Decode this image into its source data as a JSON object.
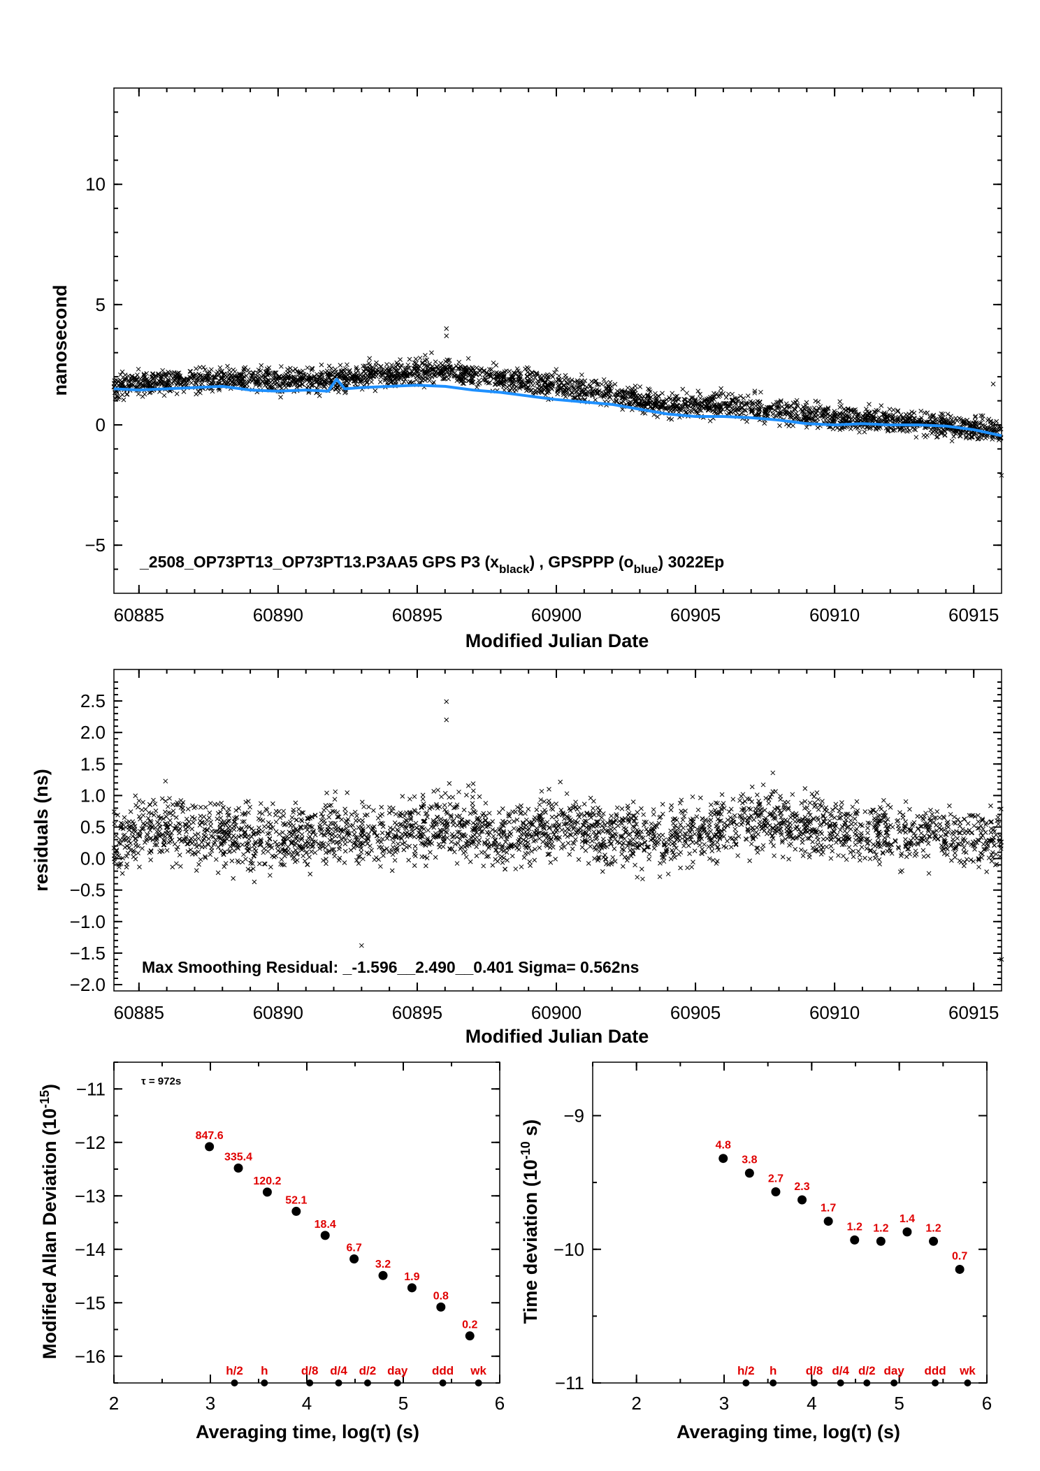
{
  "chart_data": [
    {
      "type": "scatter",
      "panel": "top",
      "title": "_2508_OP73PT13_OP73PT13.P3AA5    GPS P3 (x_black) ,  GPSPPP (o_blue)  3022Ep",
      "title_parts": {
        "main": "_2508_OP73PT13_OP73PT13.P3AA5    GPS P3 (x",
        "sub1": "black",
        "mid": ") ,  GPSPPP (o",
        "sub2": "blue",
        "end": ")  3022Ep"
      },
      "xlabel": "Modified Julian Date",
      "ylabel": "nanosecond",
      "xlim": [
        60884.1,
        60916
      ],
      "ylim": [
        -7,
        14
      ],
      "xticks": [
        "60885",
        "60890",
        "60895",
        "60900",
        "60905",
        "60910",
        "60915"
      ],
      "yticks": [
        "−5",
        "0",
        "5",
        "10"
      ],
      "series": [
        {
          "marker": "x",
          "color": "#000000",
          "trend": [
            [
              60884.1,
              1.6
            ],
            [
              60886,
              1.8
            ],
            [
              60888,
              1.9
            ],
            [
              60890,
              1.8
            ],
            [
              60892,
              1.9
            ],
            [
              60894,
              2.1
            ],
            [
              60896,
              2.3
            ],
            [
              60898,
              1.9
            ],
            [
              60900,
              1.6
            ],
            [
              60902,
              1.3
            ],
            [
              60904,
              0.8
            ],
            [
              60906,
              0.8
            ],
            [
              60908,
              0.6
            ],
            [
              60910,
              0.3
            ],
            [
              60912,
              0.2
            ],
            [
              60914,
              0.0
            ],
            [
              60916,
              -0.3
            ]
          ]
        },
        {
          "marker": "o",
          "color": "#1e90ff",
          "x": [
            60884.1,
            60885,
            60886,
            60887,
            60888,
            60889,
            60890,
            60891,
            60891.8,
            60892.1,
            60892.4,
            60893,
            60894,
            60895,
            60896,
            60897,
            60898,
            60899,
            60900,
            60901,
            60902,
            60903,
            60904,
            60905,
            60906,
            60907,
            60908,
            60909,
            60910,
            60911,
            60912,
            60913,
            60914,
            60915,
            60916
          ],
          "y": [
            1.5,
            1.45,
            1.5,
            1.55,
            1.6,
            1.45,
            1.4,
            1.45,
            1.4,
            1.9,
            1.5,
            1.55,
            1.6,
            1.65,
            1.6,
            1.45,
            1.35,
            1.2,
            1.05,
            0.95,
            0.85,
            0.65,
            0.45,
            0.35,
            0.35,
            0.3,
            0.2,
            0.05,
            0.0,
            0.05,
            0.0,
            0.0,
            -0.05,
            -0.2,
            -0.45
          ]
        }
      ]
    },
    {
      "type": "scatter",
      "panel": "middle",
      "xlabel": "Modified Julian Date",
      "ylabel": "residuals (ns)",
      "annotation": "Max Smoothing Residual: _-1.596__2.490__0.401  Sigma= 0.562ns",
      "xlim": [
        60884.1,
        60916
      ],
      "ylim": [
        -2.1,
        3.0
      ],
      "xticks": [
        "60885",
        "60890",
        "60895",
        "60900",
        "60905",
        "60910",
        "60915"
      ],
      "yticks": [
        "−2.0",
        "−1.5",
        "−1.0",
        "−0.5",
        "0.0",
        "0.5",
        "1.0",
        "1.5",
        "2.0",
        "2.5"
      ],
      "series": [
        {
          "marker": "x",
          "color": "#000000",
          "sigma": 0.562,
          "min": -1.596,
          "max": 2.49,
          "mean": 0.401,
          "trend": [
            [
              60884.1,
              0.3
            ],
            [
              60886,
              0.5
            ],
            [
              60888,
              0.35
            ],
            [
              60890,
              0.3
            ],
            [
              60892,
              0.45
            ],
            [
              60894,
              0.35
            ],
            [
              60896,
              0.6
            ],
            [
              60898,
              0.35
            ],
            [
              60900,
              0.55
            ],
            [
              60902,
              0.4
            ],
            [
              60904,
              0.3
            ],
            [
              60906,
              0.55
            ],
            [
              60908,
              0.6
            ],
            [
              60910,
              0.45
            ],
            [
              60912,
              0.4
            ],
            [
              60914,
              0.35
            ],
            [
              60916,
              0.25
            ]
          ]
        }
      ]
    },
    {
      "type": "scatter",
      "panel": "bottom-left",
      "xlabel": "Averaging time, log(τ) (s)",
      "ylabel": "Modified Allan Deviation (10",
      "ylabel_exp": "-15",
      "ylabel_end": ")",
      "tau_note": "τ = 972s",
      "xlim": [
        2,
        6
      ],
      "ylim": [
        -16.5,
        -10.5
      ],
      "xticks": [
        "2",
        "3",
        "4",
        "5",
        "6"
      ],
      "yticks": [
        "−16",
        "−15",
        "−14",
        "−13",
        "−12",
        "−11"
      ],
      "x": [
        2.99,
        3.29,
        3.59,
        3.89,
        4.19,
        4.49,
        4.79,
        5.09,
        5.39,
        5.69
      ],
      "y": [
        -12.08,
        -12.48,
        -12.93,
        -13.29,
        -13.74,
        -14.18,
        -14.49,
        -14.72,
        -15.08,
        -15.62
      ],
      "labels": [
        "847.6",
        "335.4",
        "120.2",
        "52.1",
        "18.4",
        "6.7",
        "3.2",
        "1.9",
        "0.8",
        "0.2"
      ],
      "markers": {
        "x": [
          3.25,
          3.56,
          4.03,
          4.33,
          4.63,
          4.94,
          5.41,
          5.78
        ],
        "labels": [
          "h/2",
          "h",
          "d/8",
          "d/4",
          "d/2",
          "day",
          "ddd",
          "wk"
        ]
      }
    },
    {
      "type": "scatter",
      "panel": "bottom-right",
      "xlabel": "Averaging time, log(τ) (s)",
      "ylabel": "Time deviation (10",
      "ylabel_exp": "-10",
      "ylabel_end": " s)",
      "xlim": [
        1.5,
        6
      ],
      "ylim": [
        -11,
        -8.6
      ],
      "xticks": [
        "2",
        "3",
        "4",
        "5",
        "6"
      ],
      "yticks": [
        "−11",
        "−10",
        "−9"
      ],
      "x": [
        2.99,
        3.29,
        3.59,
        3.89,
        4.19,
        4.49,
        4.79,
        5.09,
        5.39,
        5.69
      ],
      "y": [
        -9.32,
        -9.43,
        -9.57,
        -9.63,
        -9.79,
        -9.93,
        -9.94,
        -9.87,
        -9.94,
        -10.15
      ],
      "labels": [
        "4.8",
        "3.8",
        "2.7",
        "2.3",
        "1.7",
        "1.2",
        "1.2",
        "1.4",
        "1.2",
        "0.7"
      ],
      "markers": {
        "x": [
          3.25,
          3.56,
          4.03,
          4.33,
          4.63,
          4.94,
          5.41,
          5.78
        ],
        "labels": [
          "h/2",
          "h",
          "d/8",
          "d/4",
          "d/2",
          "day",
          "ddd",
          "wk"
        ]
      }
    }
  ]
}
